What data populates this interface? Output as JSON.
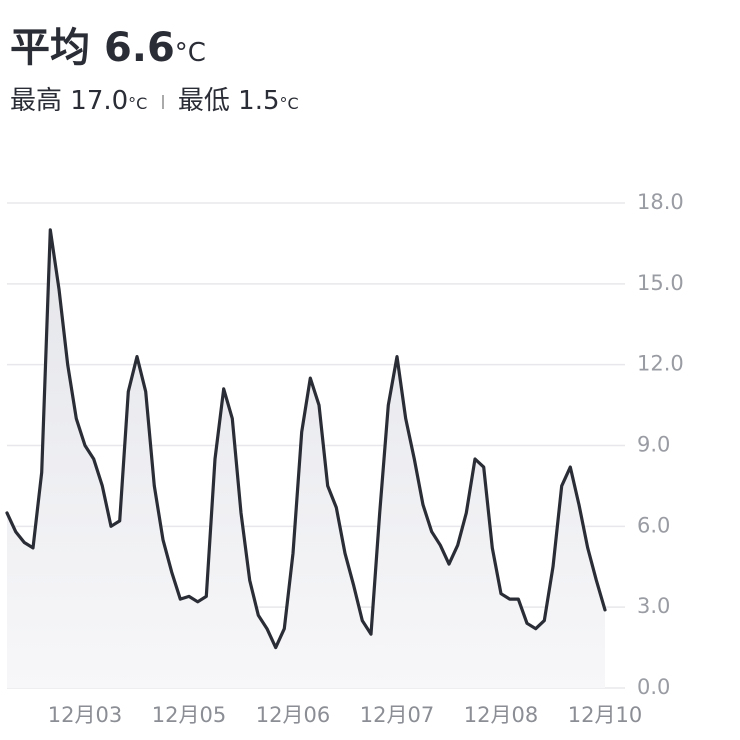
{
  "header": {
    "avg_label": "平均",
    "avg_value": "6.6",
    "unit": "°C",
    "max_label": "最高",
    "max_value": "17.0",
    "min_label": "最低",
    "min_value": "1.5"
  },
  "chart_data": {
    "type": "line",
    "color": "#2b2d36",
    "grid": true,
    "categories": [
      null,
      null,
      null,
      null,
      null,
      null,
      null,
      null,
      null,
      "12月03",
      null,
      null,
      null,
      null,
      null,
      null,
      null,
      null,
      null,
      null,
      null,
      "12月05",
      null,
      null,
      null,
      null,
      null,
      null,
      null,
      null,
      null,
      null,
      null,
      "12月06",
      null,
      null,
      null,
      null,
      null,
      null,
      null,
      null,
      null,
      null,
      null,
      "12月07",
      null,
      null,
      null,
      null,
      null,
      null,
      null,
      null,
      null,
      null,
      null,
      "12月08",
      null,
      null,
      null,
      null,
      null,
      null,
      null,
      null,
      null,
      null,
      null,
      "12月10"
    ],
    "values": [
      6.5,
      5.8,
      5.4,
      5.2,
      8.0,
      17.0,
      14.8,
      12.0,
      10.0,
      9.0,
      8.5,
      7.5,
      6.0,
      6.2,
      11.0,
      12.3,
      11.0,
      7.5,
      5.5,
      4.3,
      3.3,
      3.4,
      3.2,
      3.4,
      8.5,
      11.1,
      10.0,
      6.5,
      4.0,
      2.7,
      2.2,
      1.5,
      2.2,
      5.0,
      9.5,
      11.5,
      10.5,
      7.5,
      6.7,
      5.0,
      3.8,
      2.5,
      2.0,
      6.5,
      10.5,
      12.3,
      10.0,
      8.5,
      6.8,
      5.8,
      5.3,
      4.6,
      5.3,
      6.5,
      8.5,
      8.2,
      5.2,
      3.5,
      3.3,
      3.3,
      2.4,
      2.2,
      2.5,
      4.5,
      7.5,
      8.2,
      6.8,
      5.2,
      4.0,
      2.9
    ],
    "ylim": [
      0,
      18
    ],
    "yticks": [
      {
        "value": 0,
        "label": "0.0"
      },
      {
        "value": 3,
        "label": "3.0"
      },
      {
        "value": 6,
        "label": "6.0"
      },
      {
        "value": 9,
        "label": "9.0"
      },
      {
        "value": 12,
        "label": "12.0"
      },
      {
        "value": 15,
        "label": "15.0"
      },
      {
        "value": 18,
        "label": "18.0"
      }
    ]
  }
}
